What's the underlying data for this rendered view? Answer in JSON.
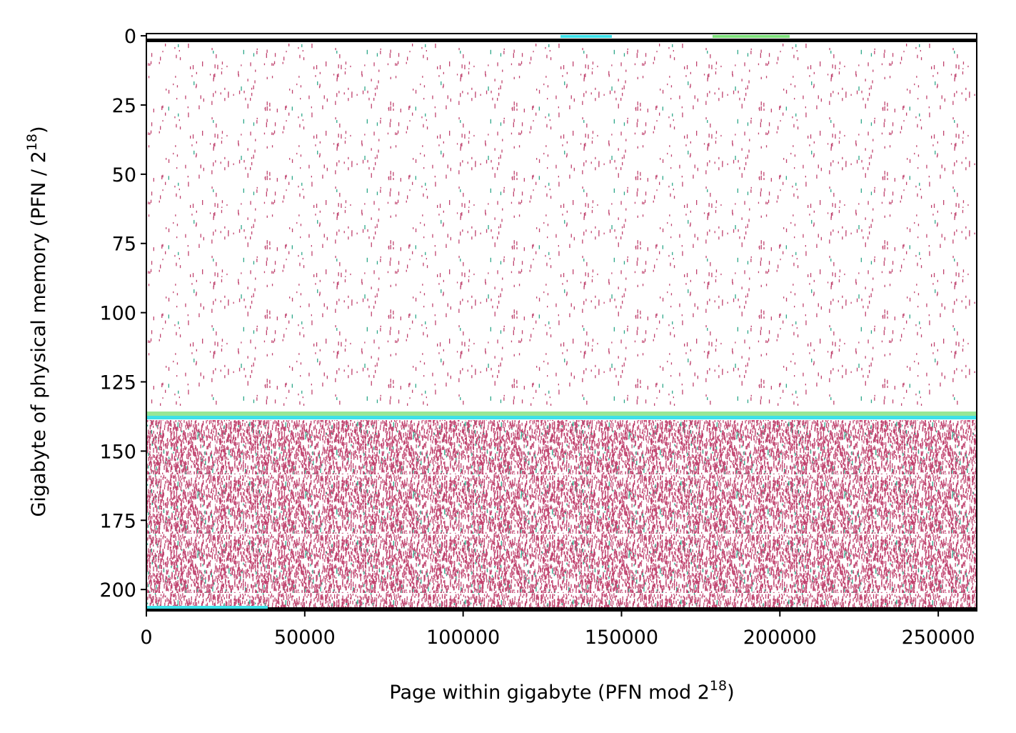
{
  "chart_data": {
    "type": "heatmap",
    "xlabel": {
      "text": "Page within gigabyte (PFN mod 2",
      "sup": "18",
      "tail": ")"
    },
    "ylabel": {
      "text": "Gigabyte of physical memory (PFN / 2",
      "sup": "18",
      "tail": ")"
    },
    "xlim": [
      0,
      262144
    ],
    "xticks": [
      0,
      50000,
      100000,
      150000,
      200000,
      250000
    ],
    "ylim": [
      207.7,
      -0.8
    ],
    "yticks": [
      0,
      25,
      50,
      75,
      100,
      125,
      150,
      175,
      200
    ],
    "color": "#c0446f"
  }
}
